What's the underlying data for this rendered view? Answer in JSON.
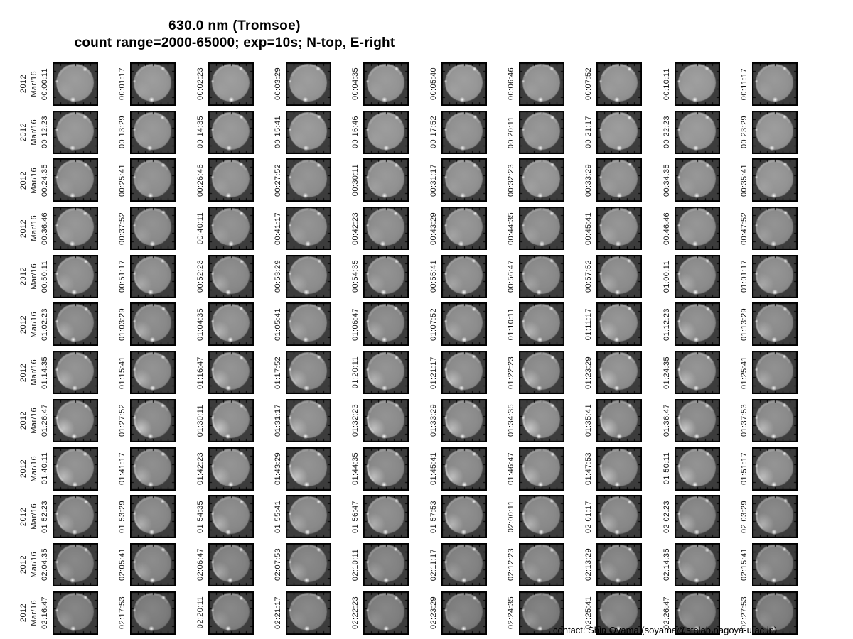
{
  "title": {
    "line1": "630.0 nm (Tromsoe)",
    "line2": "count range=2000-65000; exp=10s; N-top, E-right"
  },
  "contact": "contact: Shin Oyama (soyama@stelab.nagoya-u.ac.jp)",
  "row_header": {
    "year": "2012",
    "date": "Mar/16"
  },
  "appearance": {
    "frame_bg": "#3c3c3c",
    "frame_border": "#000000",
    "label_color": "#161616",
    "disk_gray": [
      149,
      147,
      145,
      142,
      140,
      140,
      141,
      140,
      138,
      135,
      132,
      127
    ],
    "limb_glow": [
      0.18,
      0.18,
      0.22,
      0.34,
      0.46,
      0.52,
      0.6,
      0.74,
      0.68,
      0.56,
      0.46,
      0.3
    ]
  },
  "chart_data": {
    "type": "table",
    "title": "630.0 nm (Tromsoe)",
    "subtitle": "count range=2000-65000; exp=10s; N-top, E-right",
    "description": "Montage of all-sky imager frames (630.0 nm, Tromsoe), 12 rows x 10 frames, 2012 Mar/16, N-top, E-right",
    "row_label_prefix": [
      "2012",
      "Mar/16"
    ],
    "rows": [
      [
        "00:00:11",
        "00:01:17",
        "00:02:23",
        "00:03:29",
        "00:04:35",
        "00:05:40",
        "00:06:46",
        "00:07:52",
        "00:10:11",
        "00:11:17"
      ],
      [
        "00:12:23",
        "00:13:29",
        "00:14:35",
        "00:15:41",
        "00:16:46",
        "00:17:52",
        "00:20:11",
        "00:21:17",
        "00:22:23",
        "00:23:29"
      ],
      [
        "00:24:35",
        "00:25:41",
        "00:26:46",
        "00:27:52",
        "00:30:11",
        "00:31:17",
        "00:32:23",
        "00:33:29",
        "00:34:35",
        "00:35:41"
      ],
      [
        "00:36:46",
        "00:37:52",
        "00:40:11",
        "00:41:17",
        "00:42:23",
        "00:43:29",
        "00:44:35",
        "00:45:41",
        "00:46:46",
        "00:47:52"
      ],
      [
        "00:50:11",
        "00:51:17",
        "00:52:23",
        "00:53:29",
        "00:54:35",
        "00:55:41",
        "00:56:47",
        "00:57:52",
        "01:00:11",
        "01:01:17"
      ],
      [
        "01:02:23",
        "01:03:29",
        "01:04:35",
        "01:05:41",
        "01:06:47",
        "01:07:52",
        "01:10:11",
        "01:11:17",
        "01:12:23",
        "01:13:29"
      ],
      [
        "01:14:35",
        "01:15:41",
        "01:16:47",
        "01:17:52",
        "01:20:11",
        "01:21:17",
        "01:22:23",
        "01:23:29",
        "01:24:35",
        "01:25:41"
      ],
      [
        "01:26:47",
        "01:27:52",
        "01:30:11",
        "01:31:17",
        "01:32:23",
        "01:33:29",
        "01:34:35",
        "01:35:41",
        "01:36:47",
        "01:37:53"
      ],
      [
        "01:40:11",
        "01:41:17",
        "01:42:23",
        "01:43:29",
        "01:44:35",
        "01:45:41",
        "01:46:47",
        "01:47:53",
        "01:50:11",
        "01:51:17"
      ],
      [
        "01:52:23",
        "01:53:29",
        "01:54:35",
        "01:55:41",
        "01:56:47",
        "01:57:53",
        "02:00:11",
        "02:01:17",
        "02:02:23",
        "02:03:29"
      ],
      [
        "02:04:35",
        "02:05:41",
        "02:06:47",
        "02:07:53",
        "02:10:11",
        "02:11:17",
        "02:12:23",
        "02:13:29",
        "02:14:35",
        "02:15:41"
      ],
      [
        "02:16:47",
        "02:17:53",
        "02:20:11",
        "02:21:17",
        "02:22:23",
        "02:23:29",
        "02:24:35",
        "02:25:41",
        "02:26:47",
        "02:27:53"
      ]
    ]
  }
}
